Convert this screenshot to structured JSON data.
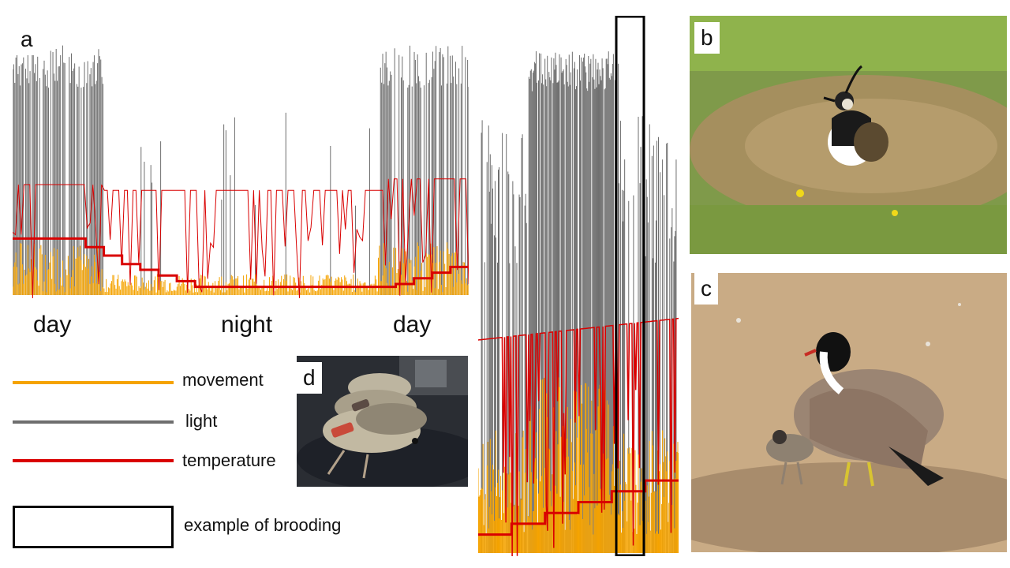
{
  "panels": {
    "a": "a",
    "b": "b",
    "c": "c",
    "d": "d"
  },
  "period_labels": [
    "day",
    "night",
    "day"
  ],
  "legend": {
    "movement": "movement",
    "light": "light",
    "temperature": "temperature",
    "brooding": "example of brooding"
  },
  "colors": {
    "movement": "#F5A300",
    "light": "#6E6E6E",
    "temperature": "#D90000",
    "box": "#000000"
  },
  "chart_data": [
    {
      "type": "line",
      "panel": "a",
      "series": [
        {
          "name": "movement"
        },
        {
          "name": "light"
        },
        {
          "name": "temperature"
        }
      ],
      "period_labels": [
        "day",
        "night",
        "day"
      ],
      "temperature_steps": [
        0.82,
        0.78,
        0.74,
        0.7,
        0.66,
        0.62,
        0.58,
        0.54,
        0.5,
        0.5,
        0.5,
        0.54,
        0.58,
        0.62,
        0.66
      ],
      "grid": false
    },
    {
      "type": "line",
      "panel": "brooding-detail",
      "series": [
        {
          "name": "movement"
        },
        {
          "name": "light"
        },
        {
          "name": "temperature"
        }
      ],
      "annotation": "example of brooding",
      "grid": false
    }
  ]
}
